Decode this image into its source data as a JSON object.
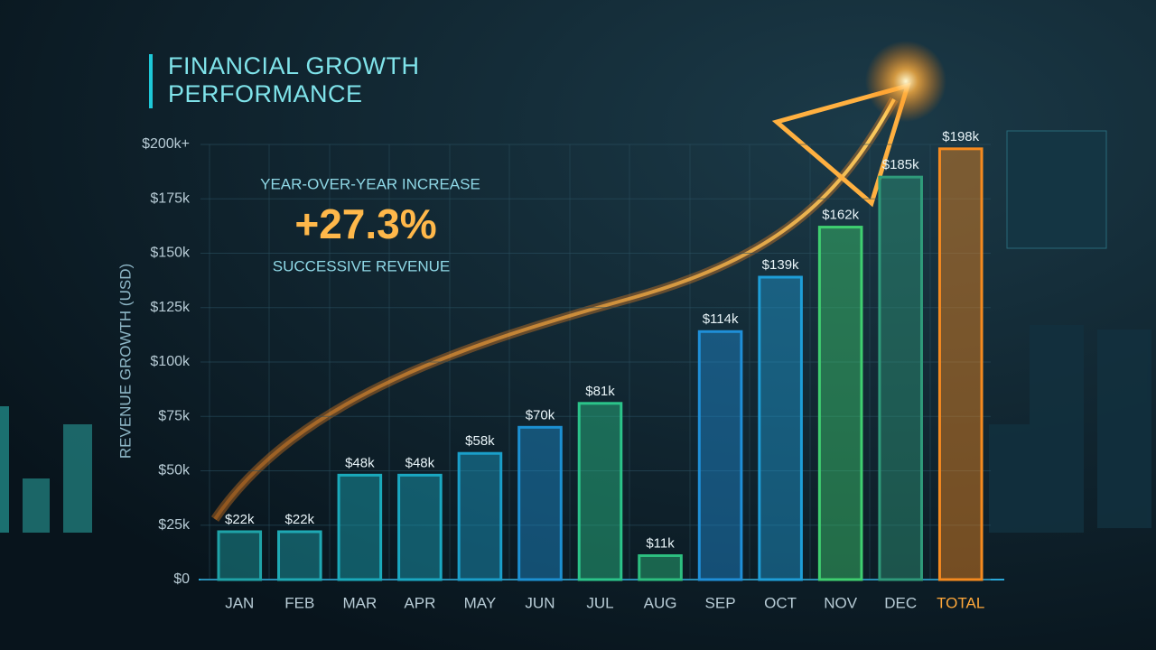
{
  "chart_data": {
    "type": "bar",
    "title": "FINANCIAL GROWTH PERFORMANCE",
    "y_label": "REVENUE GROWTH (USD)",
    "annotations": [
      "YEAR-OVER-YEAR INCREASE",
      "+27.3%",
      "SUCCESSIVE REVENUE"
    ],
    "categories": [
      "JAN",
      "FEB",
      "MAR",
      "APR",
      "MAY",
      "JUN",
      "JUL",
      "AUG",
      "SEP",
      "OCT",
      "NOV",
      "DEC",
      "TOTAL"
    ],
    "values": [
      22000,
      22000,
      48000,
      48000,
      58000,
      70000,
      81000,
      11000,
      114000,
      139000,
      162000,
      185000,
      198000
    ],
    "value_labels": [
      "$22k",
      "$22k",
      "$48k",
      "$48k",
      "$58k",
      "$70k",
      "$81k",
      "$11k",
      "$114k",
      "$139k",
      "$162k",
      "$185k",
      "$198k"
    ],
    "colors": [
      "#1fa3a8",
      "#1fa9b4",
      "#1aaabb",
      "#1aa8c2",
      "#1a9fca",
      "#1c90d2",
      "#2bc48a",
      "#2dbf80",
      "#1f8fd8",
      "#1e9ed8",
      "#3fcf70",
      "#2f9a7a",
      "#f58a1f"
    ],
    "ylim": [
      0,
      200000
    ],
    "yticks": [
      {
        "value": 0,
        "label": "$0"
      },
      {
        "value": 25000,
        "label": "$25k"
      },
      {
        "value": 50000,
        "label": "$50k"
      },
      {
        "value": 75000,
        "label": "$75k"
      },
      {
        "value": 100000,
        "label": "$100k"
      },
      {
        "value": 125000,
        "label": "$125k"
      },
      {
        "value": 150000,
        "label": "$150k"
      },
      {
        "value": 175000,
        "label": "$175k"
      },
      {
        "value": 200000,
        "label": "$200k+"
      }
    ],
    "grid": true
  }
}
